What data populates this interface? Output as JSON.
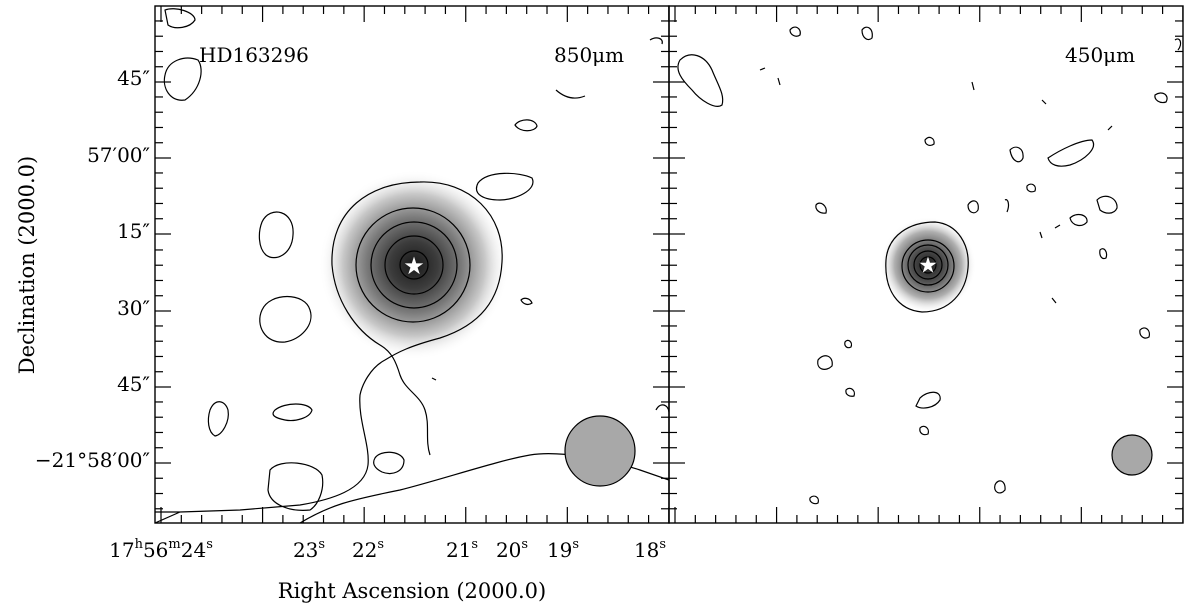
{
  "chart_data": {
    "type": "heatmap",
    "xlabel": "Right Ascension (2000.0)",
    "ylabel": "Declination (2000.0)",
    "y_ticks": [
      {
        "label": "45″",
        "dec_offset_arcsec": 45
      },
      {
        "label": "57′00″",
        "dec_offset_arcsec": 60
      },
      {
        "label": "15″",
        "dec_offset_arcsec": 75
      },
      {
        "label": "30″",
        "dec_offset_arcsec": 90
      },
      {
        "label": "45″",
        "dec_offset_arcsec": 105
      },
      {
        "label": "−21°58′00″",
        "dec_offset_arcsec": 120
      }
    ],
    "x_ticks": [
      {
        "label": "17h56m24s",
        "ra_s": 24
      },
      {
        "label": "23s",
        "ra_s": 23
      },
      {
        "label": "22s",
        "ra_s": 22
      },
      {
        "label": "21s",
        "ra_s": 21
      },
      {
        "label": "20s",
        "ra_s": 20
      },
      {
        "label": "19s",
        "ra_s": 19
      },
      {
        "label": "18s",
        "ra_s": 18
      }
    ],
    "panels": [
      {
        "object": "HD163296",
        "wavelength": "850μm",
        "source": {
          "ra_s": 21.3,
          "dec_offset_arcsec": 81
        },
        "beam": "large"
      },
      {
        "object": "",
        "wavelength": "450μm",
        "source": {
          "ra_s": 21.3,
          "dec_offset_arcsec": 81
        },
        "beam": "small"
      }
    ]
  },
  "tick_labels": {
    "y": [
      "45″",
      "57′00″",
      "15″",
      "30″",
      "45″",
      "−21°58′00″"
    ],
    "x_first": {
      "h": "17",
      "hs": "h",
      "m": "56",
      "ms": "m",
      "s": "24",
      "ss": "s"
    },
    "x_rest": [
      "23",
      "22",
      "21",
      "20",
      "19",
      "18"
    ]
  },
  "marker_icon": "star-icon"
}
